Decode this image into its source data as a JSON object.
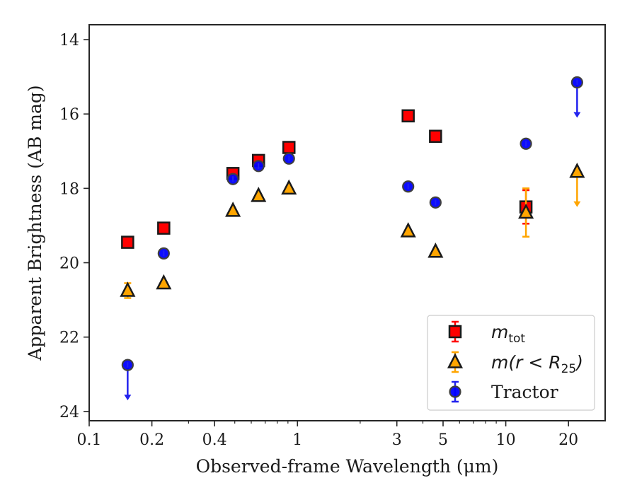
{
  "chart_data": {
    "type": "scatter",
    "xlabel": "Observed-frame Wavelength (μm)",
    "ylabel": "Apparent Brightness (AB mag)",
    "x_scale": "log",
    "xlim": [
      0.1,
      30
    ],
    "ylim": [
      24.25,
      13.6
    ],
    "y_inverted": true,
    "x_ticks": [
      0.1,
      0.2,
      0.4,
      1,
      3,
      5,
      10,
      20
    ],
    "x_tick_labels": [
      "0.1",
      "0.2",
      "0.4",
      "1",
      "3",
      "5",
      "10",
      "20"
    ],
    "y_ticks": [
      14,
      16,
      18,
      20,
      22,
      24
    ],
    "y_tick_labels": [
      "14",
      "16",
      "18",
      "20",
      "22",
      "24"
    ],
    "grid": false,
    "legend_position": "lower-right",
    "series": [
      {
        "name": "m_tot",
        "legend_label": "m",
        "legend_sub": "tot",
        "marker": "square",
        "color": "#ff0000",
        "errorbar_color": "#ff0000",
        "points": [
          {
            "x": 0.153,
            "y": 19.45
          },
          {
            "x": 0.228,
            "y": 19.07
          },
          {
            "x": 0.49,
            "y": 17.6
          },
          {
            "x": 0.65,
            "y": 17.25
          },
          {
            "x": 0.91,
            "y": 16.9
          },
          {
            "x": 3.4,
            "y": 16.05
          },
          {
            "x": 4.6,
            "y": 16.6
          },
          {
            "x": 12.5,
            "y": 18.5,
            "yerr": 0.45
          }
        ]
      },
      {
        "name": "m(r < R25)",
        "legend_label": "m(r < R",
        "legend_sub": "25",
        "legend_tail": ")",
        "marker": "triangle",
        "color": "#ffa500",
        "errorbar_color": "#ffa500",
        "points": [
          {
            "x": 0.153,
            "y": 20.75,
            "yerr": 0.2
          },
          {
            "x": 0.228,
            "y": 20.55
          },
          {
            "x": 0.49,
            "y": 18.6
          },
          {
            "x": 0.65,
            "y": 18.2
          },
          {
            "x": 0.91,
            "y": 18.0
          },
          {
            "x": 3.4,
            "y": 19.15
          },
          {
            "x": 4.6,
            "y": 19.7
          },
          {
            "x": 12.5,
            "y": 18.65,
            "yerr": 0.65
          },
          {
            "x": 22,
            "y": 17.55,
            "upper_limit": true
          }
        ]
      },
      {
        "name": "Tractor",
        "legend_label": "Tractor",
        "marker": "circle",
        "color": "#0000ff",
        "errorbar_color": "#2222ee",
        "points": [
          {
            "x": 0.153,
            "y": 22.75,
            "upper_limit": true
          },
          {
            "x": 0.228,
            "y": 19.75
          },
          {
            "x": 0.49,
            "y": 17.75
          },
          {
            "x": 0.65,
            "y": 17.4
          },
          {
            "x": 0.91,
            "y": 17.2
          },
          {
            "x": 3.4,
            "y": 17.95
          },
          {
            "x": 4.6,
            "y": 18.38
          },
          {
            "x": 12.5,
            "y": 16.8
          },
          {
            "x": 22,
            "y": 15.15,
            "upper_limit": true
          }
        ]
      }
    ]
  }
}
